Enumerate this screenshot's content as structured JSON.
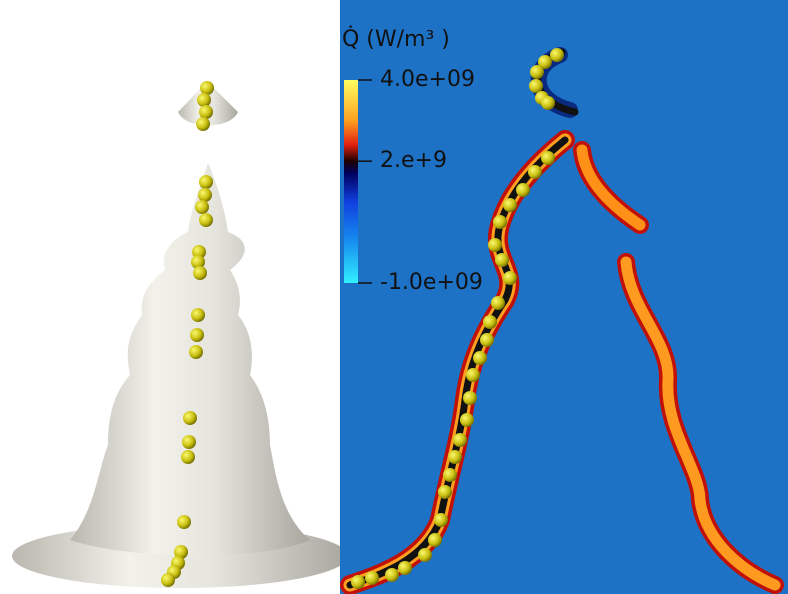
{
  "colorbar": {
    "title": "Q̇ (W/m³ )",
    "range": [
      -1000000000,
      4000000000
    ],
    "ticks": [
      {
        "value": 4000000000,
        "label": "4.0e+09"
      },
      {
        "value": 2000000000,
        "label": "2.e+9"
      },
      {
        "value": -1000000000,
        "label": "-1.0e+09"
      }
    ]
  }
}
